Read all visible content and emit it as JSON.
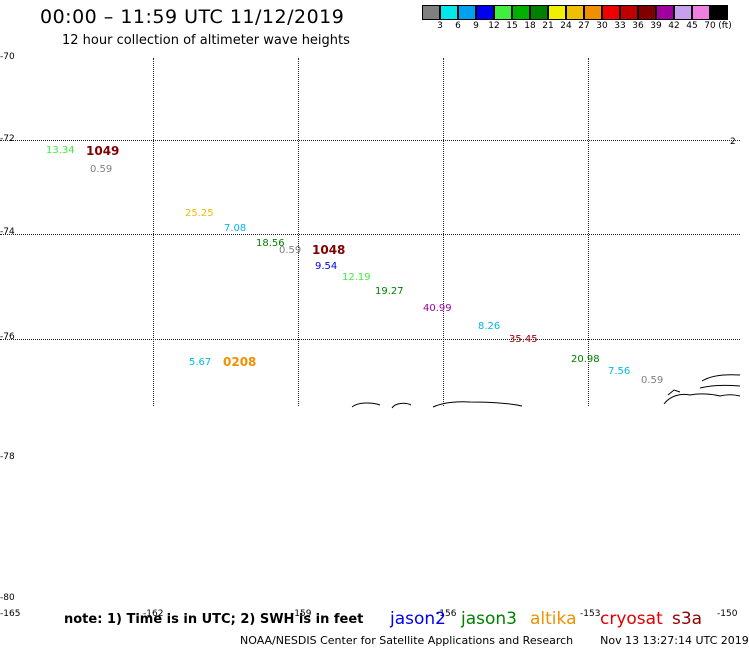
{
  "header": {
    "title": "00:00 – 11:59 UTC 11/12/2019",
    "subtitle": "12 hour collection of altimeter wave heights"
  },
  "scale": {
    "colors": [
      "#808080",
      "#00e8e8",
      "#00a0f0",
      "#0000f0",
      "#40ee40",
      "#00b000",
      "#008000",
      "#f0f000",
      "#f0c000",
      "#f09000",
      "#f00000",
      "#c00000",
      "#800000",
      "#a000a0",
      "#c8a0f0",
      "#f080e0",
      "#000000"
    ],
    "labels": [
      "3",
      "6",
      "9",
      "12",
      "15",
      "18",
      "21",
      "24",
      "27",
      "30",
      "33",
      "36",
      "39",
      "42",
      "45",
      "70",
      "(ft)"
    ]
  },
  "lat_labels": {
    "l70": "-70",
    "l72": "-72",
    "l74": "-74",
    "l76": "-76",
    "l78": "-78",
    "l80": "-80"
  },
  "lon_labels": {
    "l165": "-165",
    "l162": "-162",
    "l159": "-159",
    "l156": "-156",
    "l153": "-153",
    "l150": "-150"
  },
  "map": {
    "edge_mark": "2",
    "cyclones": {
      "c1049": "1049",
      "c1048": "1048",
      "c0208": "0208"
    },
    "values": {
      "v1": "13.34",
      "v2": "0.59",
      "v3": "25.25",
      "v4": "7.08",
      "v5": "18.56",
      "v6": "0.59",
      "v7": "9.54",
      "v8": "12.19",
      "v9": "19.27",
      "v10": "40.99",
      "v11": "8.26",
      "v12": "35.45",
      "v13": "20.98",
      "v14": "7.56",
      "v15": "0.59",
      "v16": "5.67"
    },
    "colors": {
      "lightgreen": "#40ee40",
      "gray": "#808080",
      "yellow": "#f0c000",
      "cyan": "#00b8e8",
      "green": "#008000",
      "blue": "#0000f0",
      "purple": "#a000a0",
      "darkred": "#a00000",
      "orange": "#f09000"
    }
  },
  "footer": {
    "note": "note: 1) Time is in UTC; 2) SWH is in feet",
    "satellites": {
      "jason2": "jason2",
      "jason3": "jason3",
      "altika": "altika",
      "cryosat": "cryosat",
      "s3a": "s3a"
    },
    "credit": "NOAA/NESDIS Center for Satellite Applications and Research",
    "timestamp": "Nov 13 13:27:14 UTC 2019"
  }
}
